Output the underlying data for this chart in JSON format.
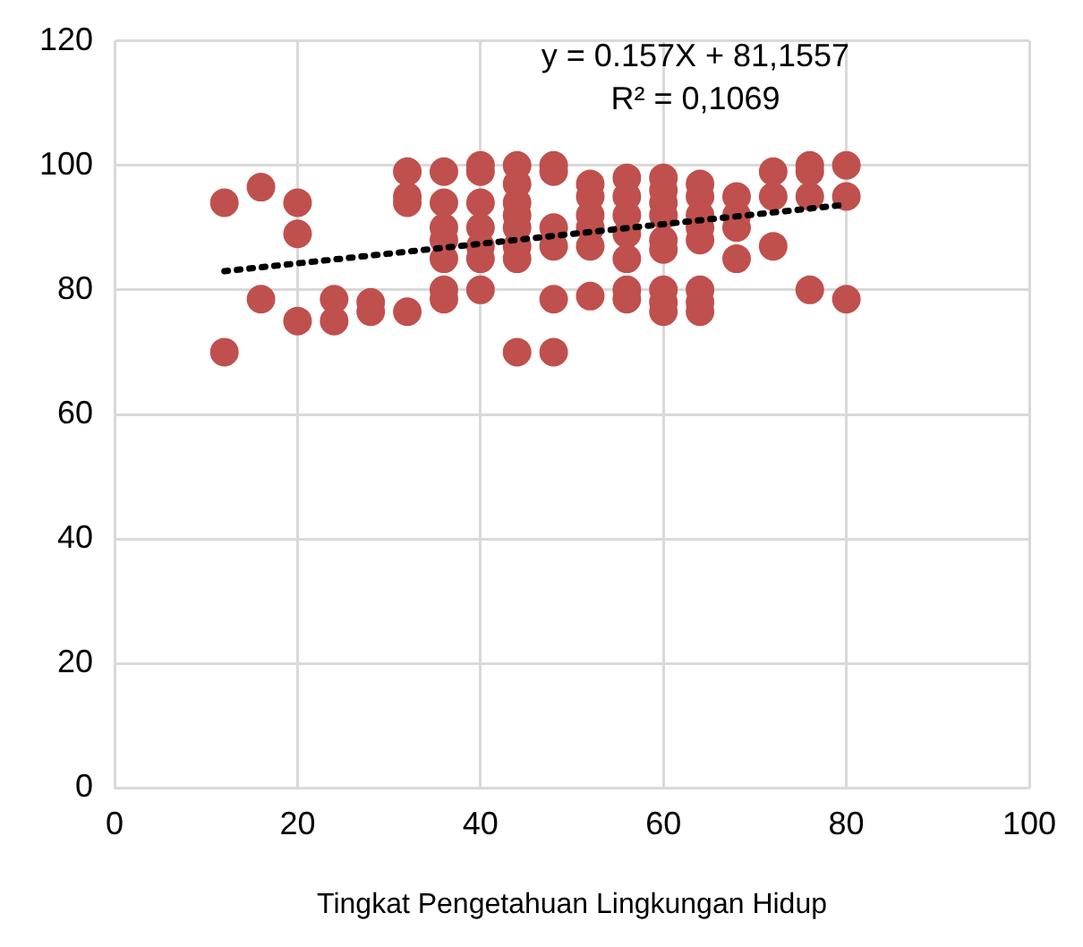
{
  "chart_data": {
    "type": "scatter",
    "xlabel": "Tingkat Pengetahuan Lingkungan Hidup",
    "xlim": [
      0,
      100
    ],
    "xticks": [
      0,
      20,
      40,
      60,
      80,
      100
    ],
    "ylim": [
      0,
      120
    ],
    "yticks": [
      0,
      20,
      40,
      60,
      80,
      100,
      120
    ],
    "grid": true,
    "legend": false,
    "marker": "circle",
    "annotations": [
      "y = 0.157X + 81,1557",
      "R² = 0,1069"
    ],
    "series": [
      {
        "color": "#c0504d",
        "x": [
          12,
          12,
          16,
          16,
          20,
          20,
          20,
          24,
          24,
          28,
          28,
          32,
          32,
          32,
          32,
          36,
          36,
          36,
          36,
          36,
          36,
          36,
          40,
          40,
          40,
          40,
          40,
          40,
          40,
          44,
          44,
          44,
          44,
          44,
          44,
          44,
          44,
          48,
          48,
          48,
          48,
          48,
          48,
          52,
          52,
          52,
          52,
          52,
          52,
          56,
          56,
          56,
          56,
          56,
          56,
          56,
          60,
          60,
          60,
          60,
          60,
          60,
          60,
          60,
          60,
          64,
          64,
          64,
          64,
          64,
          64,
          64,
          64,
          68,
          68,
          68,
          68,
          72,
          72,
          72,
          76,
          76,
          76,
          76,
          80,
          80,
          80
        ],
        "values": [
          94,
          70,
          96.5,
          78.5,
          94,
          89,
          75,
          78.5,
          75,
          78,
          76.5,
          99,
          95,
          94,
          76.5,
          99,
          94,
          90,
          88,
          85,
          80,
          78.5,
          100,
          99,
          94,
          90,
          87,
          85,
          80,
          100,
          97,
          94,
          92,
          90,
          87,
          85,
          70,
          100,
          99,
          90,
          87,
          78.5,
          70,
          97,
          95,
          92,
          90,
          87,
          79,
          98,
          95,
          92,
          89,
          85,
          80,
          78.5,
          98,
          96,
          94,
          92,
          88,
          86.5,
          80,
          78,
          76.5,
          97,
          95,
          92,
          90,
          88,
          80,
          78,
          76.5,
          95,
          92,
          90,
          85,
          99,
          95,
          87,
          100,
          99,
          95,
          80,
          100,
          95,
          78.5
        ]
      },
      {
        "type": "line",
        "color": "#000000",
        "line_style": "dotted",
        "marker": "none",
        "x": [
          12,
          80
        ],
        "values": [
          83,
          93.7
        ]
      }
    ]
  }
}
